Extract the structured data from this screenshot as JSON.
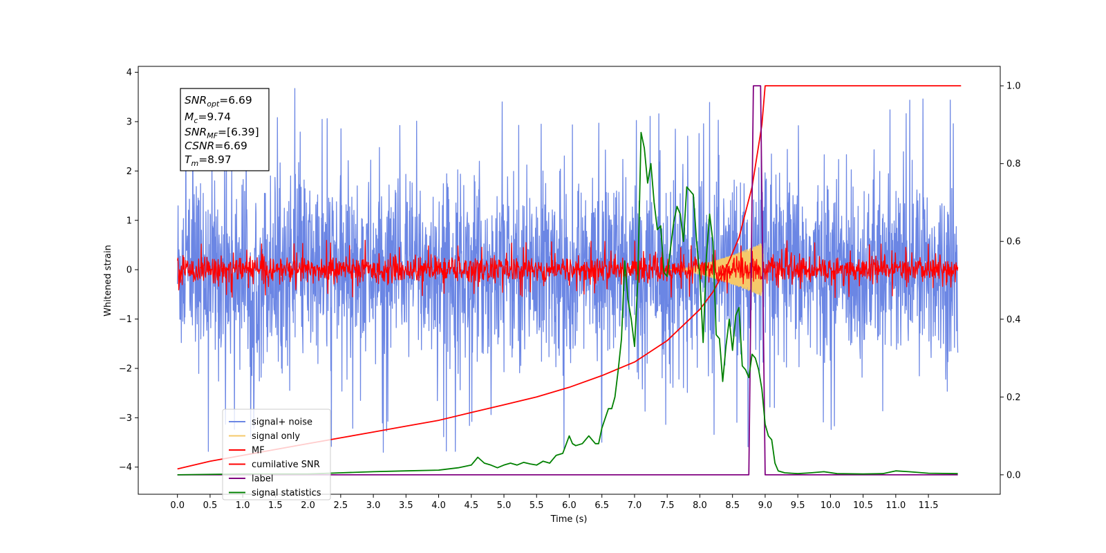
{
  "chart_data": {
    "type": "line",
    "xlabel": "Time (s)",
    "ylabel": "Whitened strain",
    "x_ticks": [
      "0.0",
      "0.5",
      "1.0",
      "1.5",
      "2.0",
      "2.5",
      "3.0",
      "3.5",
      "4.0",
      "4.5",
      "5.0",
      "5.5",
      "6.0",
      "6.5",
      "7.0",
      "7.5",
      "8.0",
      "8.5",
      "9.0",
      "9.5",
      "10.0",
      "10.5",
      "11.0",
      "11.5"
    ],
    "y_ticks_left": [
      "4",
      "3",
      "2",
      "1",
      "0",
      "−1",
      "−2",
      "−3",
      "−4"
    ],
    "y_ticks_right": [
      "1.0",
      "0.8",
      "0.6",
      "0.4",
      "0.2",
      "0.0"
    ],
    "xlim": [
      -0.6,
      12.6
    ],
    "ylim_left": [
      -4.55,
      4.12
    ],
    "ylim_right": [
      -0.05,
      1.05
    ],
    "grid": false,
    "legend_placement": "lower-left",
    "infobox": {
      "snr_opt": {
        "sym": "SNR",
        "sub": "opt",
        "value": "=6.69"
      },
      "mc": {
        "sym": "M",
        "sub": "c",
        "value": "=9.74"
      },
      "snr_mf": {
        "sym": "SNR",
        "sub": "MF",
        "value": "=[6.39]"
      },
      "csnr": {
        "sym": "CSNR",
        "sub": "",
        "value": "=6.69"
      },
      "tm": {
        "sym": "T",
        "sub": "m",
        "value": "=8.97"
      }
    },
    "series": [
      {
        "name": "signal+ noise",
        "axis": "left",
        "color": "#6b86e4",
        "kind": "noise",
        "amplitude": 1.5,
        "peak": 3.7
      },
      {
        "name": "signal only",
        "axis": "left",
        "color": "#f5c96a",
        "kind": "chirp",
        "t_start": 7.5,
        "t_merge": 8.97,
        "peak_amplitude": 0.55
      },
      {
        "name": "MF",
        "axis": "left",
        "color": "#ff0000",
        "kind": "noise",
        "amplitude": 0.22,
        "peak": 0.6
      },
      {
        "name": "cumilative SNR",
        "axis": "right",
        "color": "#ff0000",
        "x": [
          0.0,
          0.5,
          1.0,
          1.5,
          2.0,
          2.5,
          3.0,
          3.5,
          4.0,
          4.5,
          5.0,
          5.5,
          6.0,
          6.5,
          7.0,
          7.5,
          8.0,
          8.2,
          8.4,
          8.6,
          8.8,
          8.95,
          9.0,
          9.5,
          10.0,
          11.0,
          11.5,
          12.0
        ],
        "y": [
          0.015,
          0.035,
          0.05,
          0.065,
          0.08,
          0.095,
          0.11,
          0.125,
          0.14,
          0.16,
          0.18,
          0.2,
          0.225,
          0.255,
          0.29,
          0.345,
          0.425,
          0.47,
          0.53,
          0.61,
          0.74,
          0.9,
          1.0,
          1.0,
          1.0,
          1.0,
          1.0,
          1.0
        ]
      },
      {
        "name": "label",
        "axis": "right",
        "color": "#800080",
        "x": [
          0.0,
          8.75,
          8.82,
          8.93,
          9.0,
          11.95
        ],
        "y": [
          0.0,
          0.0,
          1.0,
          1.0,
          0.0,
          0.0
        ]
      },
      {
        "name": "signal statistics",
        "axis": "right",
        "color": "#008000",
        "x": [
          0.0,
          1.0,
          2.0,
          2.5,
          3.0,
          3.5,
          4.0,
          4.3,
          4.5,
          4.6,
          4.7,
          4.8,
          4.9,
          5.0,
          5.1,
          5.2,
          5.3,
          5.4,
          5.5,
          5.6,
          5.7,
          5.8,
          5.9,
          6.0,
          6.05,
          6.1,
          6.2,
          6.3,
          6.4,
          6.45,
          6.5,
          6.6,
          6.65,
          6.7,
          6.75,
          6.8,
          6.85,
          6.9,
          6.95,
          7.0,
          7.05,
          7.1,
          7.15,
          7.2,
          7.25,
          7.3,
          7.35,
          7.4,
          7.45,
          7.5,
          7.55,
          7.6,
          7.65,
          7.7,
          7.75,
          7.8,
          7.85,
          7.9,
          7.95,
          8.0,
          8.05,
          8.1,
          8.15,
          8.2,
          8.25,
          8.3,
          8.35,
          8.4,
          8.45,
          8.5,
          8.55,
          8.6,
          8.65,
          8.7,
          8.75,
          8.8,
          8.85,
          8.9,
          8.95,
          9.0,
          9.05,
          9.1,
          9.15,
          9.2,
          9.3,
          9.5,
          9.7,
          9.9,
          10.1,
          10.5,
          10.8,
          11.0,
          11.2,
          11.5,
          11.95
        ],
        "y": [
          0.0,
          0.002,
          0.002,
          0.005,
          0.008,
          0.01,
          0.012,
          0.018,
          0.025,
          0.045,
          0.03,
          0.025,
          0.018,
          0.025,
          0.03,
          0.025,
          0.032,
          0.028,
          0.025,
          0.035,
          0.03,
          0.05,
          0.055,
          0.1,
          0.08,
          0.075,
          0.08,
          0.1,
          0.08,
          0.08,
          0.12,
          0.17,
          0.17,
          0.2,
          0.27,
          0.35,
          0.55,
          0.45,
          0.4,
          0.33,
          0.5,
          0.88,
          0.84,
          0.75,
          0.8,
          0.7,
          0.63,
          0.64,
          0.52,
          0.51,
          0.58,
          0.65,
          0.69,
          0.67,
          0.6,
          0.74,
          0.73,
          0.72,
          0.6,
          0.51,
          0.34,
          0.56,
          0.67,
          0.6,
          0.36,
          0.35,
          0.24,
          0.33,
          0.4,
          0.32,
          0.41,
          0.43,
          0.28,
          0.27,
          0.25,
          0.31,
          0.3,
          0.27,
          0.22,
          0.13,
          0.1,
          0.09,
          0.03,
          0.01,
          0.005,
          0.003,
          0.005,
          0.008,
          0.003,
          0.002,
          0.003,
          0.01,
          0.008,
          0.004,
          0.003
        ]
      }
    ]
  }
}
